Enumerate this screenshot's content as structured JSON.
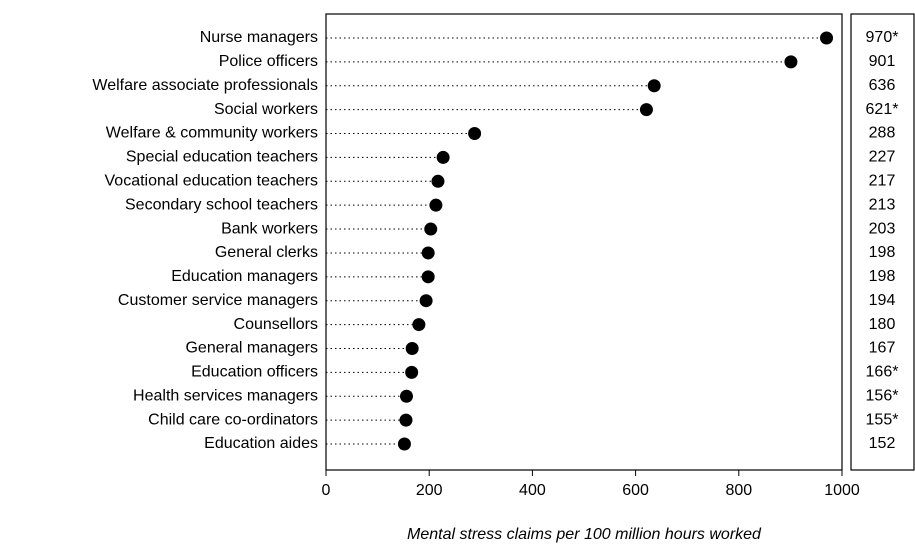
{
  "chart_data": {
    "type": "dot",
    "xlabel": "Mental stress claims per 100 million hours worked",
    "categories": [
      "Nurse managers",
      "Police officers",
      "Welfare associate professionals",
      "Social workers",
      "Welfare & community workers",
      "Special education teachers",
      "Vocational education teachers",
      "Secondary school teachers",
      "Bank workers",
      "General clerks",
      "Education managers",
      "Customer service managers",
      "Counsellors",
      "General managers",
      "Education officers",
      "Health services managers",
      "Child care co-ordinators",
      "Education aides"
    ],
    "values": [
      970,
      901,
      636,
      621,
      288,
      227,
      217,
      213,
      203,
      198,
      198,
      194,
      180,
      167,
      166,
      156,
      155,
      152
    ],
    "value_labels": [
      "970*",
      "901",
      "636",
      "621*",
      "288",
      "227",
      "217",
      "213",
      "203",
      "198",
      "198",
      "194",
      "180",
      "167",
      "166*",
      "156*",
      "155*",
      "152"
    ],
    "color": "#000000",
    "xlim": [
      0,
      1000
    ],
    "xticks": [
      0,
      200,
      400,
      600,
      800,
      1000
    ]
  }
}
